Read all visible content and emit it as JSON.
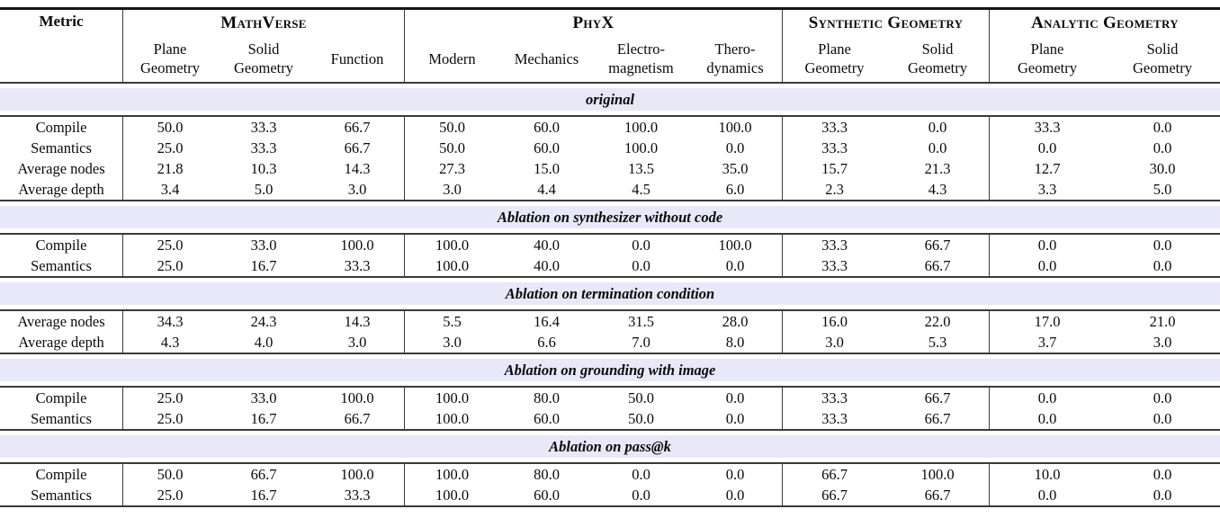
{
  "chart_data": {
    "type": "table",
    "metric_header": "Metric",
    "column_groups": [
      {
        "label": "MathVerse",
        "columns": [
          "Plane\nGeometry",
          "Solid\nGeometry",
          "Function"
        ]
      },
      {
        "label": "PhyX",
        "columns": [
          "Modern",
          "Mechanics",
          "Electro-\nmagnetism",
          "Thero-\ndynamics"
        ]
      },
      {
        "label": "Synthetic Geometry",
        "columns": [
          "Plane\nGeometry",
          "Solid\nGeometry"
        ]
      },
      {
        "label": "Analytic Geometry",
        "columns": [
          "Plane\nGeometry",
          "Solid\nGeometry"
        ]
      }
    ],
    "sections": [
      {
        "title": "original",
        "rows": [
          {
            "metric": "Compile",
            "values": [
              "50.0",
              "33.3",
              "66.7",
              "50.0",
              "60.0",
              "100.0",
              "100.0",
              "33.3",
              "0.0",
              "33.3",
              "0.0"
            ]
          },
          {
            "metric": "Semantics",
            "values": [
              "25.0",
              "33.3",
              "66.7",
              "50.0",
              "60.0",
              "100.0",
              "0.0",
              "33.3",
              "0.0",
              "0.0",
              "0.0"
            ]
          },
          {
            "metric": "Average nodes",
            "values": [
              "21.8",
              "10.3",
              "14.3",
              "27.3",
              "15.0",
              "13.5",
              "35.0",
              "15.7",
              "21.3",
              "12.7",
              "30.0"
            ]
          },
          {
            "metric": "Average depth",
            "values": [
              "3.4",
              "5.0",
              "3.0",
              "3.0",
              "4.4",
              "4.5",
              "6.0",
              "2.3",
              "4.3",
              "3.3",
              "5.0"
            ]
          }
        ]
      },
      {
        "title": "Ablation on synthesizer without code",
        "rows": [
          {
            "metric": "Compile",
            "values": [
              "25.0",
              "33.0",
              "100.0",
              "100.0",
              "40.0",
              "0.0",
              "100.0",
              "33.3",
              "66.7",
              "0.0",
              "0.0"
            ]
          },
          {
            "metric": "Semantics",
            "values": [
              "25.0",
              "16.7",
              "33.3",
              "100.0",
              "40.0",
              "0.0",
              "0.0",
              "33.3",
              "66.7",
              "0.0",
              "0.0"
            ]
          }
        ]
      },
      {
        "title": "Ablation on termination condition",
        "rows": [
          {
            "metric": "Average nodes",
            "values": [
              "34.3",
              "24.3",
              "14.3",
              "5.5",
              "16.4",
              "31.5",
              "28.0",
              "16.0",
              "22.0",
              "17.0",
              "21.0"
            ]
          },
          {
            "metric": "Average depth",
            "values": [
              "4.3",
              "4.0",
              "3.0",
              "3.0",
              "6.6",
              "7.0",
              "8.0",
              "3.0",
              "5.3",
              "3.7",
              "3.0"
            ]
          }
        ]
      },
      {
        "title": "Ablation on grounding with image",
        "rows": [
          {
            "metric": "Compile",
            "values": [
              "25.0",
              "33.0",
              "100.0",
              "100.0",
              "80.0",
              "50.0",
              "0.0",
              "33.3",
              "66.7",
              "0.0",
              "0.0"
            ]
          },
          {
            "metric": "Semantics",
            "values": [
              "25.0",
              "16.7",
              "66.7",
              "100.0",
              "60.0",
              "50.0",
              "0.0",
              "33.3",
              "66.7",
              "0.0",
              "0.0"
            ]
          }
        ]
      },
      {
        "title": "Ablation on pass@k",
        "rows": [
          {
            "metric": "Compile",
            "values": [
              "50.0",
              "66.7",
              "100.0",
              "100.0",
              "80.0",
              "0.0",
              "0.0",
              "66.7",
              "100.0",
              "10.0",
              "0.0"
            ]
          },
          {
            "metric": "Semantics",
            "values": [
              "25.0",
              "16.7",
              "33.3",
              "100.0",
              "60.0",
              "0.0",
              "0.0",
              "66.7",
              "66.7",
              "0.0",
              "0.0"
            ]
          }
        ]
      }
    ],
    "colors": {
      "section_band": "#E8E8F8",
      "rule": "#3A3A3A",
      "text": "#0A0A0A"
    }
  }
}
